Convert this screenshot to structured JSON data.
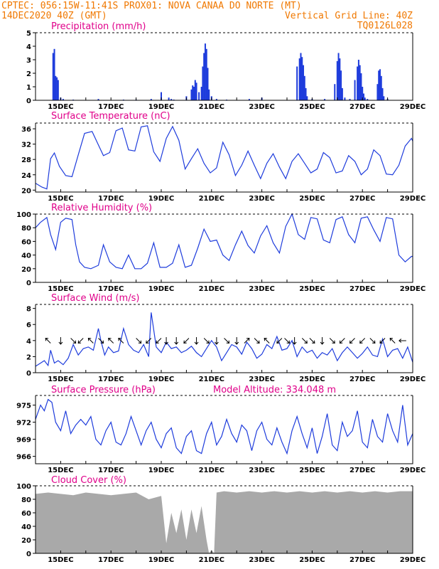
{
  "header": {
    "line1": "CPTEC:  056:15W-11:41S  PROX01: NOVA CANAA DO NORTE (MT)",
    "line2_left": "14DEC2020 40Z (GMT)",
    "line2_right": "Vertical Grid Line: 40Z",
    "line3_right": "TQ0126L028"
  },
  "x_ticks": [
    "15DEC",
    "17DEC",
    "19DEC",
    "21DEC",
    "23DEC",
    "25DEC",
    "27DEC",
    "29DEC"
  ],
  "model_altitude": "Model Altitude: 334.048 m",
  "colors": {
    "header": "#f07800",
    "title": "#e0008a",
    "series": "#1e3cdc",
    "cloud": "#a9a9a9"
  },
  "chart_data": [
    {
      "id": "precip",
      "type": "bar",
      "title": "Precipitation (mm/h)",
      "x_range": [
        14.0,
        29.0
      ],
      "ylim": [
        0,
        5
      ],
      "yticks": [
        0,
        1,
        2,
        3,
        4,
        5
      ],
      "x": [
        14.7,
        14.75,
        14.8,
        14.85,
        14.9,
        15.0,
        15.1,
        15.5,
        16.5,
        17.5,
        18.0,
        18.6,
        19.0,
        19.3,
        19.4,
        19.5,
        20.0,
        20.2,
        20.25,
        20.3,
        20.35,
        20.4,
        20.5,
        20.6,
        20.65,
        20.7,
        20.75,
        20.8,
        20.85,
        20.9,
        21.0,
        21.2,
        21.6,
        22.5,
        23.0,
        24.4,
        24.5,
        24.55,
        24.6,
        24.65,
        24.7,
        24.75,
        24.8,
        25.0,
        25.5,
        25.9,
        26.0,
        26.05,
        26.1,
        26.15,
        26.2,
        26.3,
        26.5,
        26.7,
        26.8,
        26.85,
        26.9,
        26.95,
        27.0,
        27.05,
        27.1,
        27.2,
        27.6,
        27.65,
        27.7,
        27.75,
        27.8,
        27.85,
        28.0
      ],
      "values": [
        3.5,
        3.8,
        1.8,
        1.7,
        1.5,
        0.2,
        0.1,
        0.05,
        0.1,
        0.05,
        0.05,
        0.1,
        0.6,
        0.2,
        0.1,
        0.05,
        0.3,
        0.8,
        1.1,
        1.0,
        1.5,
        1.3,
        0.6,
        1.0,
        2.5,
        3.5,
        4.2,
        3.8,
        2.4,
        0.8,
        0.3,
        0.1,
        0.05,
        0.1,
        0.2,
        2.5,
        3.1,
        3.5,
        3.2,
        2.6,
        1.8,
        0.9,
        0.3,
        0.1,
        0.1,
        1.2,
        2.9,
        3.5,
        3.1,
        2.2,
        0.9,
        0.2,
        0.1,
        1.5,
        2.5,
        3.0,
        2.6,
        2.0,
        1.0,
        0.5,
        0.2,
        0.1,
        1.2,
        2.2,
        2.3,
        1.8,
        0.9,
        0.3,
        0.1
      ]
    },
    {
      "id": "temp",
      "type": "line",
      "title": "Surface Temperature (nC)",
      "x_range": [
        14.0,
        29.0
      ],
      "ylim": [
        19.5,
        37.5
      ],
      "yticks": [
        20,
        24,
        28,
        32,
        36
      ],
      "x": [
        14.0,
        14.25,
        14.45,
        14.6,
        14.75,
        14.95,
        15.2,
        15.45,
        15.7,
        15.95,
        16.25,
        16.45,
        16.7,
        16.95,
        17.2,
        17.45,
        17.7,
        17.95,
        18.2,
        18.45,
        18.7,
        18.95,
        19.2,
        19.45,
        19.7,
        19.95,
        20.2,
        20.45,
        20.7,
        20.95,
        21.2,
        21.45,
        21.7,
        21.95,
        22.2,
        22.45,
        22.7,
        22.95,
        23.2,
        23.45,
        23.7,
        23.95,
        24.2,
        24.45,
        24.7,
        24.95,
        25.2,
        25.45,
        25.7,
        25.95,
        26.2,
        26.45,
        26.7,
        26.95,
        27.2,
        27.45,
        27.7,
        27.95,
        28.2,
        28.45,
        28.7,
        28.95,
        29.0
      ],
      "values": [
        21.8,
        20.8,
        20.3,
        28.2,
        29.7,
        26.2,
        23.8,
        23.5,
        29.2,
        34.8,
        35.3,
        32.5,
        29.0,
        29.8,
        35.5,
        36.2,
        30.5,
        30.2,
        36.5,
        36.8,
        30.0,
        27.5,
        33.5,
        36.6,
        33.0,
        25.5,
        28.2,
        30.8,
        27.0,
        24.5,
        25.8,
        32.5,
        29.2,
        23.8,
        26.5,
        30.2,
        26.5,
        23.0,
        27.0,
        29.5,
        26.0,
        23.0,
        27.5,
        29.5,
        27.0,
        24.5,
        25.5,
        29.8,
        28.5,
        24.5,
        25.0,
        29.0,
        27.5,
        24.0,
        25.5,
        30.5,
        29.0,
        24.2,
        24.0,
        26.5,
        31.5,
        33.5,
        32.8
      ]
    },
    {
      "id": "humidity",
      "type": "line",
      "title": "Relative Humidity (%)",
      "x_range": [
        14.0,
        29.0
      ],
      "ylim": [
        0,
        100
      ],
      "yticks": [
        0,
        20,
        40,
        60,
        80,
        100
      ],
      "x": [
        14.0,
        14.2,
        14.45,
        14.6,
        14.8,
        15.0,
        15.2,
        15.45,
        15.6,
        15.75,
        15.95,
        16.2,
        16.5,
        16.7,
        16.95,
        17.2,
        17.45,
        17.7,
        17.95,
        18.2,
        18.45,
        18.7,
        18.95,
        19.2,
        19.45,
        19.7,
        19.95,
        20.2,
        20.45,
        20.7,
        20.95,
        21.2,
        21.45,
        21.7,
        21.95,
        22.2,
        22.45,
        22.7,
        22.95,
        23.2,
        23.45,
        23.7,
        23.95,
        24.2,
        24.45,
        24.7,
        24.95,
        25.2,
        25.45,
        25.7,
        25.95,
        26.2,
        26.45,
        26.7,
        26.95,
        27.2,
        27.45,
        27.7,
        27.95,
        28.2,
        28.45,
        28.7,
        28.95,
        29.0
      ],
      "values": [
        80,
        88,
        95,
        70,
        48,
        88,
        94,
        92,
        55,
        30,
        22,
        20,
        25,
        55,
        30,
        22,
        20,
        40,
        20,
        20,
        28,
        58,
        22,
        22,
        28,
        55,
        22,
        25,
        50,
        78,
        60,
        62,
        40,
        32,
        55,
        75,
        54,
        43,
        68,
        83,
        58,
        43,
        82,
        100,
        70,
        63,
        95,
        93,
        62,
        58,
        92,
        96,
        70,
        58,
        94,
        96,
        77,
        60,
        95,
        93,
        40,
        30,
        38,
        38
      ]
    },
    {
      "id": "wind",
      "type": "line",
      "title": "Surface Wind (m/s)",
      "x_range": [
        14.0,
        29.0
      ],
      "ylim": [
        0,
        8.5
      ],
      "yticks": [
        0,
        2,
        4,
        6,
        8
      ],
      "x": [
        14.0,
        14.2,
        14.35,
        14.5,
        14.6,
        14.75,
        14.9,
        15.1,
        15.3,
        15.5,
        15.7,
        15.9,
        16.1,
        16.3,
        16.5,
        16.6,
        16.75,
        16.9,
        17.1,
        17.3,
        17.5,
        17.7,
        17.9,
        18.1,
        18.3,
        18.5,
        18.6,
        18.8,
        19.0,
        19.2,
        19.4,
        19.6,
        19.8,
        20.0,
        20.2,
        20.4,
        20.6,
        20.8,
        21.0,
        21.2,
        21.4,
        21.6,
        21.8,
        22.0,
        22.2,
        22.4,
        22.6,
        22.8,
        23.0,
        23.2,
        23.4,
        23.6,
        23.8,
        24.0,
        24.2,
        24.4,
        24.6,
        24.8,
        25.0,
        25.2,
        25.4,
        25.6,
        25.8,
        26.0,
        26.2,
        26.4,
        26.6,
        26.8,
        27.0,
        27.2,
        27.4,
        27.6,
        27.8,
        28.0,
        28.2,
        28.4,
        28.6,
        28.8,
        29.0
      ],
      "values": [
        0.8,
        1.2,
        1.5,
        0.9,
        2.8,
        1.2,
        1.5,
        1.0,
        1.8,
        3.5,
        2.2,
        3.0,
        3.2,
        2.8,
        5.5,
        4.0,
        2.2,
        3.2,
        2.5,
        2.7,
        5.5,
        3.5,
        2.8,
        2.5,
        3.5,
        2.0,
        7.5,
        3.2,
        2.5,
        3.8,
        3.0,
        3.2,
        2.5,
        2.8,
        3.3,
        2.5,
        2.0,
        3.0,
        4.0,
        3.2,
        1.5,
        2.5,
        3.5,
        3.2,
        2.3,
        3.8,
        3.0,
        1.8,
        2.3,
        3.5,
        3.0,
        4.5,
        2.8,
        3.0,
        4.0,
        2.0,
        3.2,
        2.5,
        2.8,
        1.8,
        2.5,
        2.2,
        3.0,
        1.5,
        2.5,
        3.2,
        2.5,
        1.8,
        2.4,
        3.2,
        2.2,
        2.0,
        4.2,
        2.0,
        2.8,
        3.0,
        1.8,
        3.2,
        1.3
      ],
      "arrows": [
        {
          "x": 14.5,
          "dir": "NW"
        },
        {
          "x": 15.0,
          "dir": "S"
        },
        {
          "x": 15.5,
          "dir": "SE"
        },
        {
          "x": 15.8,
          "dir": "SW"
        },
        {
          "x": 16.2,
          "dir": "NW"
        },
        {
          "x": 16.6,
          "dir": "SE"
        },
        {
          "x": 17.0,
          "dir": "NW"
        },
        {
          "x": 17.4,
          "dir": "NW"
        },
        {
          "x": 18.1,
          "dir": "SE"
        },
        {
          "x": 18.5,
          "dir": "SW"
        },
        {
          "x": 18.9,
          "dir": "SW"
        },
        {
          "x": 19.2,
          "dir": "S"
        },
        {
          "x": 19.6,
          "dir": "S"
        },
        {
          "x": 20.0,
          "dir": "SW"
        },
        {
          "x": 20.4,
          "dir": "S"
        },
        {
          "x": 20.8,
          "dir": "SE"
        },
        {
          "x": 21.2,
          "dir": "S"
        },
        {
          "x": 21.6,
          "dir": "SE"
        },
        {
          "x": 22.0,
          "dir": "S"
        },
        {
          "x": 22.4,
          "dir": "NE"
        },
        {
          "x": 22.8,
          "dir": "SE"
        },
        {
          "x": 23.2,
          "dir": "NW"
        },
        {
          "x": 23.7,
          "dir": "SW"
        },
        {
          "x": 24.0,
          "dir": "SE"
        },
        {
          "x": 24.3,
          "dir": "S"
        },
        {
          "x": 24.7,
          "dir": "SE"
        },
        {
          "x": 25.0,
          "dir": "SE"
        },
        {
          "x": 25.4,
          "dir": "S"
        },
        {
          "x": 25.8,
          "dir": "SE"
        },
        {
          "x": 26.2,
          "dir": "SW"
        },
        {
          "x": 26.6,
          "dir": "SW"
        },
        {
          "x": 27.0,
          "dir": "SW"
        },
        {
          "x": 27.4,
          "dir": "SE"
        },
        {
          "x": 27.8,
          "dir": "SW"
        },
        {
          "x": 28.2,
          "dir": "NW"
        },
        {
          "x": 28.6,
          "dir": "W"
        }
      ]
    },
    {
      "id": "pressure",
      "type": "line",
      "title": "Surface Pressure (hPa)",
      "x_range": [
        14.0,
        29.0
      ],
      "ylim": [
        964.7,
        976.7
      ],
      "yticks": [
        966,
        969,
        972,
        975
      ],
      "x": [
        14.0,
        14.2,
        14.35,
        14.5,
        14.65,
        14.8,
        15.0,
        15.2,
        15.4,
        15.6,
        15.8,
        16.0,
        16.2,
        16.4,
        16.6,
        16.8,
        17.0,
        17.2,
        17.4,
        17.6,
        17.8,
        18.0,
        18.2,
        18.4,
        18.6,
        18.8,
        19.0,
        19.2,
        19.4,
        19.6,
        19.8,
        20.0,
        20.2,
        20.4,
        20.6,
        20.8,
        21.0,
        21.2,
        21.4,
        21.6,
        21.8,
        22.0,
        22.2,
        22.4,
        22.6,
        22.8,
        23.0,
        23.2,
        23.4,
        23.6,
        23.8,
        24.0,
        24.2,
        24.4,
        24.6,
        24.8,
        25.0,
        25.2,
        25.4,
        25.6,
        25.8,
        26.0,
        26.2,
        26.4,
        26.6,
        26.8,
        27.0,
        27.2,
        27.4,
        27.6,
        27.8,
        28.0,
        28.2,
        28.4,
        28.6,
        28.8,
        29.0
      ],
      "values": [
        972.5,
        975.0,
        974.0,
        976.0,
        975.5,
        972.0,
        970.5,
        974.0,
        970.0,
        971.5,
        972.5,
        971.5,
        973.0,
        969.0,
        968.0,
        970.5,
        972.0,
        968.5,
        968.0,
        970.0,
        973.0,
        970.5,
        968.0,
        970.5,
        972.0,
        969.0,
        967.5,
        970.0,
        971.0,
        967.5,
        966.5,
        969.5,
        970.5,
        967.0,
        966.5,
        970.0,
        972.0,
        968.0,
        969.5,
        972.5,
        970.0,
        968.5,
        971.5,
        970.5,
        967.0,
        970.5,
        972.0,
        969.0,
        968.0,
        971.0,
        968.5,
        966.5,
        970.5,
        973.0,
        970.0,
        967.5,
        971.0,
        966.5,
        969.5,
        973.5,
        968.0,
        967.0,
        972.0,
        969.5,
        970.5,
        974.0,
        968.5,
        967.5,
        972.5,
        969.5,
        968.5,
        973.5,
        970.5,
        968.5,
        975.0,
        968.0,
        970.0
      ]
    },
    {
      "id": "cloud",
      "type": "area",
      "title": "Cloud Cover (%)",
      "x_range": [
        14.0,
        29.0
      ],
      "ylim": [
        0,
        100
      ],
      "yticks": [
        0,
        20,
        40,
        60,
        80,
        100
      ],
      "x": [
        14.0,
        14.5,
        15.0,
        15.5,
        16.0,
        16.5,
        17.0,
        17.5,
        18.0,
        18.5,
        19.0,
        19.2,
        19.4,
        19.6,
        19.8,
        20.0,
        20.2,
        20.4,
        20.6,
        20.8,
        20.9,
        21.0,
        21.1,
        21.2,
        21.5,
        22.0,
        22.5,
        23.0,
        23.5,
        24.0,
        24.5,
        25.0,
        25.5,
        26.0,
        26.5,
        27.0,
        27.5,
        28.0,
        28.5,
        29.0
      ],
      "values": [
        88,
        90,
        88,
        86,
        90,
        88,
        86,
        88,
        90,
        80,
        85,
        15,
        60,
        30,
        65,
        20,
        65,
        30,
        70,
        20,
        0,
        5,
        0,
        90,
        92,
        90,
        92,
        90,
        92,
        90,
        92,
        90,
        92,
        90,
        92,
        90,
        92,
        90,
        92,
        92
      ]
    }
  ]
}
